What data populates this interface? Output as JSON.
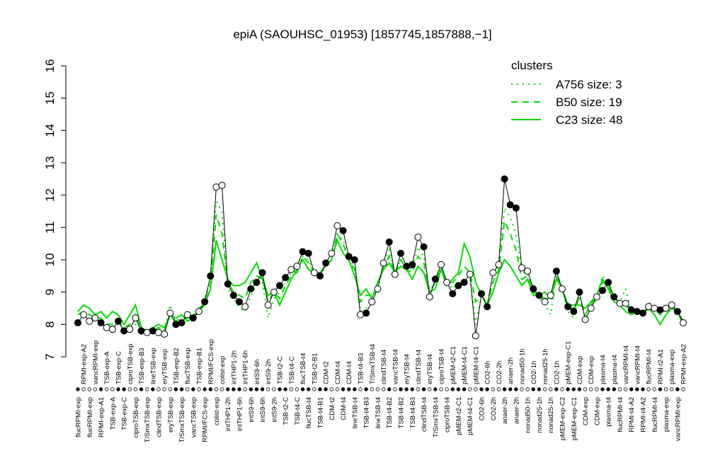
{
  "chart_data": {
    "type": "line",
    "title": "epiA (SAOUHSC_01953) [1857745,1857888,−1]",
    "legend_title": "clusters",
    "legend_color": "#00dd00",
    "legend_position": "top-right",
    "ylim": [
      7,
      16
    ],
    "yticks": [
      7,
      8,
      9,
      10,
      11,
      12,
      13,
      14,
      15,
      16
    ],
    "line_color": "#000000",
    "categories": [
      "flucRPMI-exp",
      "RPMI-exp-A2",
      "flucRPMI-exp",
      "vancRPMI-exp",
      "RPMI-exp-A1",
      "TSB-exp-A",
      "TSB-exp-A",
      "TSB-exp-C",
      "TSB-exp-C",
      "ciproTSB-exp",
      "ciproTSB-exp",
      "TSB-exp-B3",
      "T/SmxTSB-exp",
      "lineTSB-exp",
      "clindTSB-exp",
      "eryTSB-exp",
      "eryTSB-exp",
      "TSB-exp-B2",
      "T/SmxTSB-exp",
      "flucTSB-exp",
      "vancTSB-exp",
      "TSB-exp-B1",
      "RPMI/FCS-exp",
      "RPMI/FCS-exp",
      "colist-exp",
      "colist-exp",
      "intTHP1-2h",
      "intTHP1-2h",
      "intTHP1-6h",
      "intTHP1-6h",
      "intS9-6h",
      "intS9-6h",
      "intS9-6h",
      "intS9-2h",
      "intS9-2h",
      "TSB-t2-C",
      "TSB-t2-C",
      "TSB-t4-C",
      "TSB-t4-C",
      "flucTSB-t4",
      "flucTSB-t4",
      "TSB-t2-B1",
      "TSB-t4-B1",
      "CDM-t2",
      "CDM-t2",
      "CDM-t4",
      "CDM-t4",
      "CDM-t4",
      "lineTSB-t4",
      "TSB-t4-B3",
      "TSB-t4-B3",
      "T/SmxTSB-t4",
      "lineTSB-t4",
      "clindTSB-t4",
      "TSB-t4-B2",
      "vancTSB-t4",
      "TSB-t4-B2",
      "eryTSB-t4",
      "TSB-t4-B3",
      "clindTSB-t4",
      "clindTSB-t4",
      "eryTSB-t4",
      "T/SmxTSB-t4",
      "ciproTSB-t4",
      "ciproTSB-t4",
      "pMEM-t2-C1",
      "pMEM-t2-C1",
      "pMEM-t4-C1",
      "pMEM-t4-C1",
      "pMEM-t4-C1",
      "CO2-6h",
      "CO2-6h",
      "CO2-2h",
      "CO2-2h",
      "anaer-2h",
      "anaer-2h",
      "anaer-2h",
      "nonad50-1h",
      "nonad50-1h",
      "CO2-1h",
      "nonad25-1h",
      "nonad25-1h",
      "nonad25-1h",
      "CO2-1h",
      "pMEM-exp-C2",
      "pMEM-exp-C1",
      "pMEM-exp-C1",
      "CDM-exp",
      "CDM-exp",
      "CDM-exp",
      "CDM-exp",
      "plasma-t4",
      "plasma-t4",
      "plasma-t4",
      "flucRPMI-t4",
      "vancRPMI-t4",
      "RPMI-t4-A2",
      "vancRPMI-t4",
      "RPMI-t4-A2",
      "flucRPMI-t4",
      "flucRPMI-t4",
      "RPMI-t2-A1",
      "plasma-exp",
      "plasma-exp",
      "vancRPMI-exp",
      "RPMI-exp-A2"
    ],
    "values": [
      8.05,
      8.3,
      8.1,
      8.2,
      8.05,
      7.9,
      7.85,
      8.1,
      7.8,
      7.85,
      8.2,
      7.8,
      7.75,
      7.8,
      7.75,
      7.7,
      8.35,
      8.0,
      8.05,
      8.3,
      8.2,
      8.4,
      8.7,
      9.5,
      12.25,
      12.3,
      9.25,
      8.9,
      8.7,
      8.55,
      9.1,
      9.3,
      9.6,
      8.6,
      9.0,
      9.2,
      9.45,
      9.7,
      9.8,
      10.25,
      10.2,
      9.6,
      9.5,
      9.9,
      10.2,
      11.05,
      10.9,
      10.1,
      10.0,
      8.3,
      8.35,
      8.7,
      9.1,
      9.9,
      10.55,
      9.55,
      10.2,
      9.8,
      9.85,
      10.7,
      10.4,
      8.85,
      9.4,
      9.85,
      9.3,
      8.95,
      9.2,
      9.3,
      9.55,
      7.65,
      8.95,
      8.55,
      9.6,
      9.85,
      12.5,
      11.7,
      11.6,
      9.75,
      9.65,
      9.1,
      8.9,
      8.7,
      8.9,
      9.65,
      9.1,
      8.55,
      8.4,
      9.0,
      8.15,
      8.5,
      8.85,
      9.05,
      9.3,
      8.85,
      8.65,
      8.65,
      8.45,
      8.4,
      8.35,
      8.55,
      8.5,
      8.45,
      8.5,
      8.6,
      8.4,
      8.05
    ],
    "marker_fill": [
      "#000",
      "#fff",
      "#fff",
      "#fff",
      "#000",
      "#fff",
      "#fff",
      "#000",
      "#000",
      "#fff",
      "#fff",
      "#000",
      "#fff",
      "#000",
      "#fff",
      "#fff",
      "#fff",
      "#000",
      "#000",
      "#fff",
      "#000",
      "#fff",
      "#000",
      "#000",
      "#fff",
      "#fff",
      "#000",
      "#000",
      "#000",
      "#fff",
      "#000",
      "#000",
      "#000",
      "#fff",
      "#fff",
      "#000",
      "#000",
      "#fff",
      "#fff",
      "#000",
      "#000",
      "#fff",
      "#000",
      "#000",
      "#fff",
      "#fff",
      "#000",
      "#000",
      "#000",
      "#fff",
      "#000",
      "#fff",
      "#fff",
      "#fff",
      "#000",
      "#fff",
      "#000",
      "#000",
      "#000",
      "#fff",
      "#000",
      "#fff",
      "#000",
      "#fff",
      "#fff",
      "#000",
      "#000",
      "#000",
      "#fff",
      "#fff",
      "#000",
      "#000",
      "#fff",
      "#fff",
      "#000",
      "#000",
      "#000",
      "#fff",
      "#fff",
      "#000",
      "#000",
      "#fff",
      "#fff",
      "#000",
      "#fff",
      "#000",
      "#000",
      "#000",
      "#fff",
      "#fff",
      "#fff",
      "#000",
      "#000",
      "#000",
      "#fff",
      "#fff",
      "#000",
      "#000",
      "#000",
      "#fff",
      "#fff",
      "#000",
      "#fff",
      "#fff",
      "#000",
      "#fff"
    ],
    "series": [
      {
        "name": "A756 size: 3",
        "color": "#00dd00",
        "dash": "dotted",
        "values": [
          8.1,
          8.2,
          8.1,
          8.3,
          8.0,
          7.9,
          8.0,
          8.0,
          7.8,
          7.9,
          8.0,
          7.7,
          7.7,
          7.8,
          7.8,
          7.7,
          8.6,
          8.0,
          8.1,
          8.3,
          8.3,
          8.4,
          8.8,
          9.4,
          11.8,
          11.5,
          9.1,
          8.8,
          8.5,
          8.4,
          8.9,
          9.2,
          9.3,
          8.2,
          8.8,
          9.0,
          9.3,
          9.6,
          9.7,
          10.1,
          10.0,
          9.6,
          9.5,
          9.8,
          10.0,
          10.8,
          10.6,
          10.0,
          9.8,
          8.4,
          8.5,
          8.8,
          9.1,
          9.8,
          10.3,
          9.6,
          10.0,
          9.8,
          9.7,
          10.4,
          10.1,
          9.0,
          9.3,
          9.8,
          9.3,
          9.1,
          9.3,
          9.4,
          9.5,
          8.0,
          8.9,
          8.6,
          9.5,
          9.9,
          11.6,
          11.3,
          10.8,
          9.6,
          9.6,
          9.1,
          8.8,
          8.6,
          8.3,
          9.6,
          9.1,
          8.4,
          8.2,
          8.9,
          8.2,
          8.5,
          8.8,
          9.5,
          9.2,
          8.8,
          8.7,
          9.1,
          8.4,
          8.4,
          8.3,
          8.7,
          8.5,
          8.4,
          8.4,
          8.6,
          8.4,
          8.0
        ]
      },
      {
        "name": "B50 size: 19",
        "color": "#00dd00",
        "dash": "dashed",
        "values": [
          8.3,
          8.4,
          8.3,
          8.2,
          8.2,
          8.0,
          8.0,
          8.1,
          7.9,
          8.0,
          8.3,
          7.9,
          7.8,
          7.8,
          7.9,
          7.8,
          8.3,
          8.1,
          8.2,
          8.2,
          8.2,
          8.4,
          8.6,
          9.2,
          11.4,
          10.8,
          9.3,
          9.0,
          8.9,
          8.8,
          9.3,
          9.5,
          9.4,
          8.7,
          9.0,
          8.8,
          9.2,
          9.5,
          9.6,
          10.1,
          9.9,
          9.6,
          9.6,
          9.8,
          10.0,
          10.8,
          10.5,
          10.0,
          9.7,
          8.7,
          8.9,
          8.9,
          9.2,
          9.8,
          10.1,
          9.6,
          10.0,
          9.7,
          9.6,
          10.1,
          9.9,
          9.0,
          9.3,
          9.8,
          9.3,
          9.3,
          9.5,
          9.8,
          9.6,
          8.7,
          8.9,
          8.6,
          9.3,
          9.7,
          11.2,
          10.8,
          10.3,
          9.4,
          9.5,
          9.0,
          8.9,
          8.8,
          8.8,
          9.5,
          9.1,
          8.5,
          8.5,
          8.8,
          8.3,
          8.6,
          8.9,
          9.3,
          9.2,
          8.8,
          8.7,
          8.6,
          8.4,
          8.4,
          8.3,
          8.6,
          8.5,
          8.3,
          8.4,
          8.6,
          8.4,
          8.0
        ]
      },
      {
        "name": "C23 size: 48",
        "color": "#00dd00",
        "dash": "solid",
        "values": [
          8.4,
          8.6,
          8.5,
          8.3,
          8.4,
          8.2,
          8.4,
          8.3,
          8.0,
          8.3,
          8.6,
          7.9,
          7.8,
          7.9,
          8.0,
          7.9,
          8.3,
          8.2,
          8.3,
          8.1,
          8.2,
          8.5,
          8.6,
          9.1,
          10.6,
          10.0,
          9.4,
          9.2,
          9.2,
          9.3,
          9.6,
          9.9,
          9.4,
          8.9,
          9.0,
          8.6,
          9.0,
          9.4,
          9.7,
          10.0,
          9.7,
          9.6,
          9.6,
          9.8,
          10.0,
          10.6,
          10.2,
          10.0,
          9.5,
          8.9,
          9.1,
          8.8,
          9.3,
          9.7,
          9.9,
          9.6,
          9.8,
          9.7,
          9.4,
          9.8,
          9.6,
          9.0,
          9.1,
          9.7,
          9.2,
          9.4,
          9.6,
          10.5,
          10.1,
          9.3,
          8.9,
          8.6,
          9.0,
          9.6,
          10.0,
          9.8,
          9.5,
          9.2,
          9.4,
          8.9,
          8.9,
          9.0,
          8.8,
          9.4,
          9.1,
          8.6,
          8.6,
          8.6,
          8.5,
          8.7,
          8.9,
          9.4,
          9.1,
          8.7,
          8.6,
          8.4,
          8.3,
          8.4,
          8.3,
          8.5,
          8.3,
          8.0,
          8.3,
          8.5,
          8.4,
          8.1
        ]
      }
    ]
  }
}
